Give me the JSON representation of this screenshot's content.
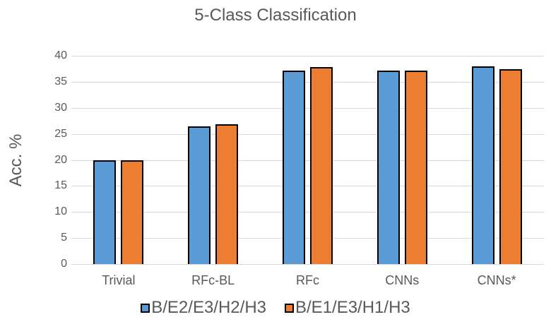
{
  "chart_data": {
    "type": "bar",
    "title": "5-Class Classification",
    "xlabel": "",
    "ylabel": "Acc. %",
    "ylim": [
      0,
      40
    ],
    "yticks": [
      0,
      5,
      10,
      15,
      20,
      25,
      30,
      35,
      40
    ],
    "grid": true,
    "legend_position": "bottom",
    "categories": [
      "Trivial",
      "RFc-BL",
      "RFc",
      "CNNs",
      "CNNs*"
    ],
    "series": [
      {
        "name": "B/E2/E3/H2/H3",
        "color": "#5b9bd5",
        "values": [
          20.0,
          26.5,
          37.2,
          37.2,
          38.0
        ]
      },
      {
        "name": "B/E1/E3/H1/H3",
        "color": "#ed7d31",
        "values": [
          20.0,
          26.8,
          37.9,
          37.1,
          37.4
        ]
      }
    ]
  }
}
